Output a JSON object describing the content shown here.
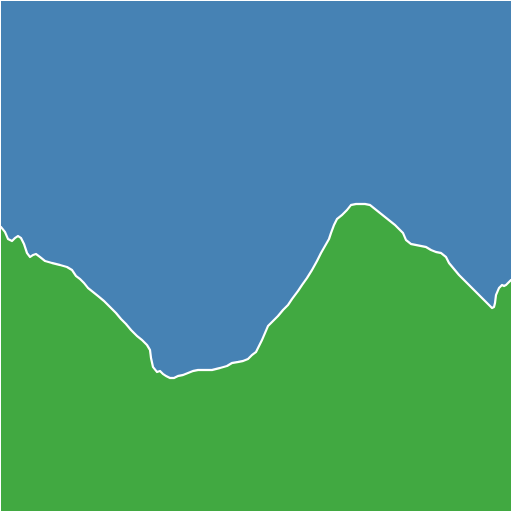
{
  "scene": {
    "colors": {
      "sky": "#4682B4",
      "ground": "#41A941",
      "outline": "#FFFFFF"
    }
  }
}
